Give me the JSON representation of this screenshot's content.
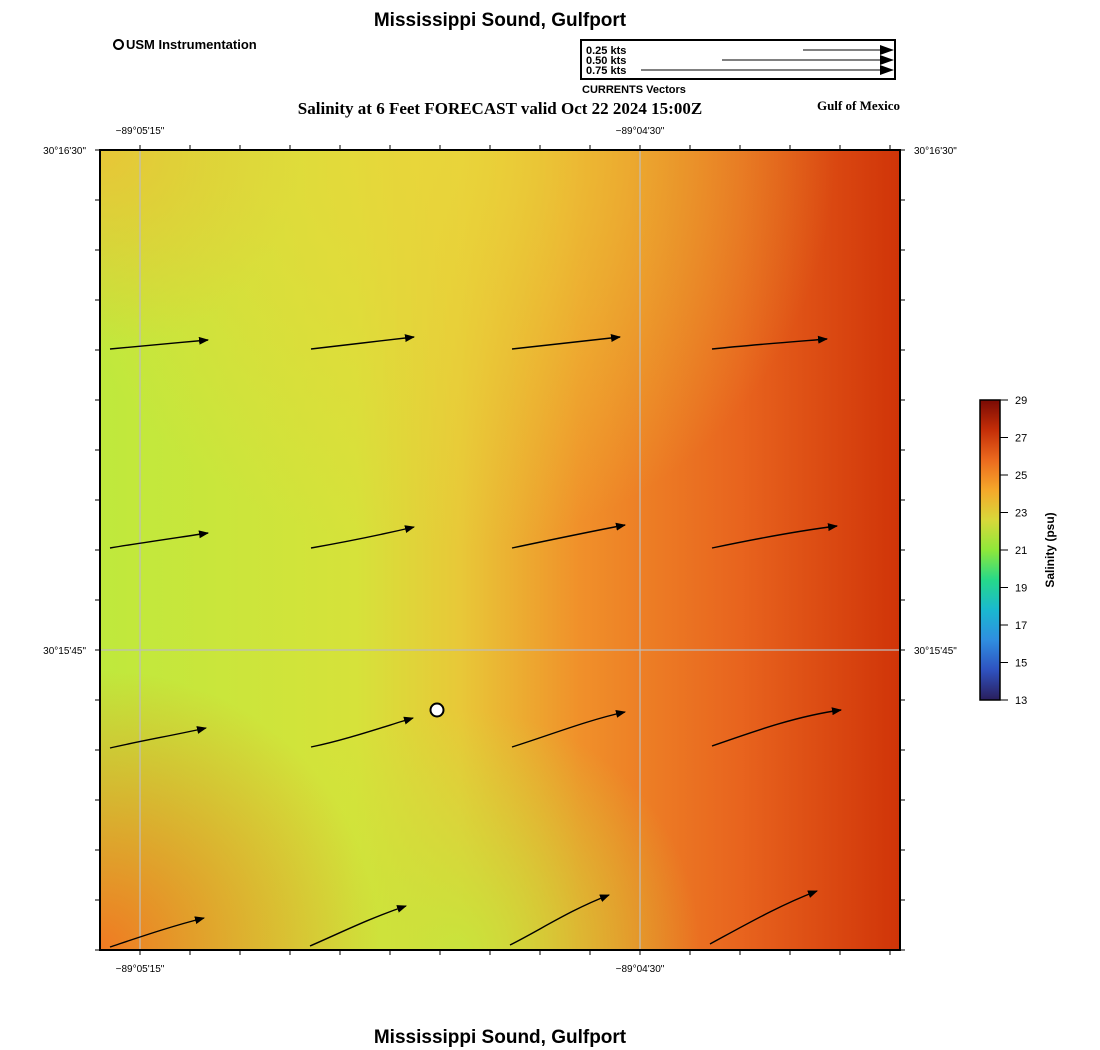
{
  "map": {
    "title": "Mississippi Sound, Gulfport",
    "bottom_title": "Mississippi Sound, Gulfport",
    "subtitle": "Salinity at 6 Feet FORECAST valid Oct 22 2024 15:00Z",
    "region_label": "Gulf of Mexico"
  },
  "legend": {
    "marker_label": "USM Instrumentation"
  },
  "vector_scale": {
    "title": "CURRENTS Vectors",
    "entries": [
      {
        "label": "0.25 kts",
        "speed": 0.25
      },
      {
        "label": "0.50 kts",
        "speed": 0.5
      },
      {
        "label": "0.75 kts",
        "speed": 0.75
      }
    ]
  },
  "axes": {
    "lon_ticks": [
      "−89°05'15\"",
      "−89°04'30\""
    ],
    "lat_ticks": [
      "30°16'30\"",
      "30°15'45\""
    ]
  },
  "colorbar": {
    "title": "Salinity (psu)",
    "min": 13,
    "max": 29,
    "ticks": [
      "29",
      "27",
      "25",
      "23",
      "21",
      "19",
      "17",
      "15",
      "13"
    ],
    "colors": [
      "#2a1e5c",
      "#2f6ad9",
      "#1ab8d0",
      "#26d98a",
      "#8fe83a",
      "#c9e83a",
      "#f0c030",
      "#f5902a",
      "#e35418",
      "#b81e08",
      "#7a0a04"
    ]
  },
  "field_colors": {
    "low": "#bfe93c",
    "mid": "#e8d83a",
    "high": "#f0882a",
    "max": "#d03008"
  },
  "station": {
    "name": "USM Instrumentation"
  }
}
